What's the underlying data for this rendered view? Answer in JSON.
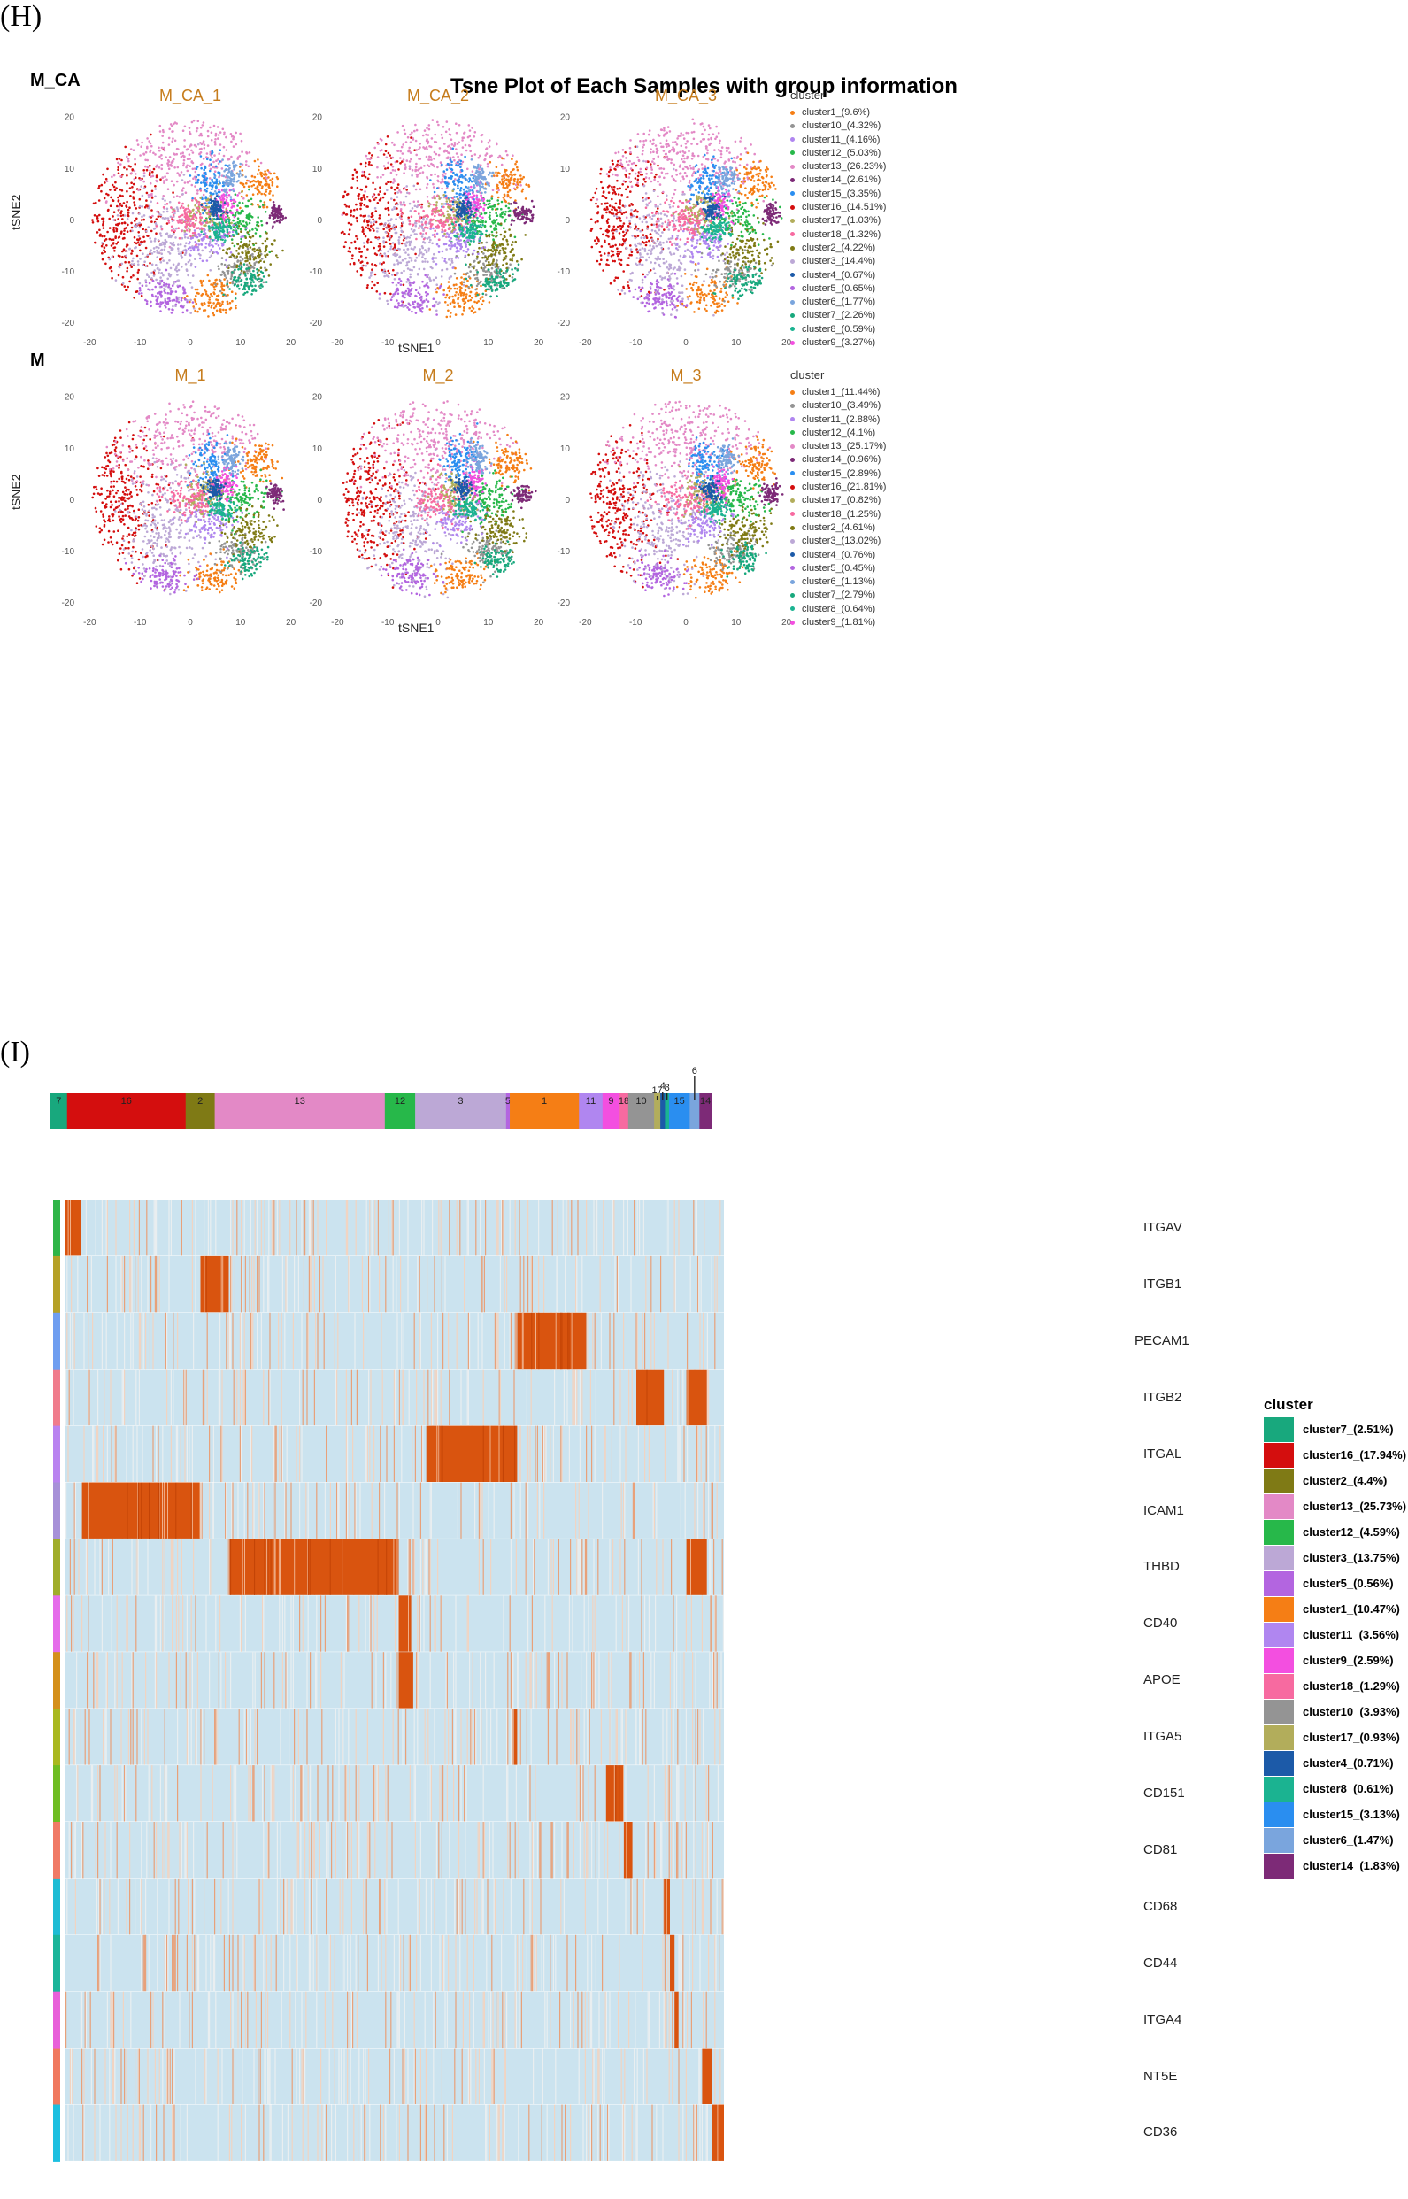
{
  "panel_h_label": "(H)",
  "panel_i_label": "(I)",
  "colors": {
    "cluster1": "#f57e15",
    "cluster2": "#7f7a15",
    "cluster3": "#bca8d6",
    "cluster4": "#1c5aa8",
    "cluster5": "#b365e0",
    "cluster6": "#7aa5dd",
    "cluster7": "#18a87d",
    "cluster8": "#1bb391",
    "cluster9": "#f34fe0",
    "cluster10": "#949494",
    "cluster11": "#b086f0",
    "cluster12": "#27b84a",
    "cluster13": "#e389c6",
    "cluster14": "#7d2a77",
    "cluster15": "#2a8ef0",
    "cluster16": "#d40e0e",
    "cluster17": "#b2ad5b",
    "cluster18": "#f76aa0"
  },
  "chart_data": [
    {
      "type": "scatter",
      "title": "Tsne Plot of Each Samples with group information",
      "xlabel": "tSNE1",
      "ylabel": "tSNE2",
      "xlim": [
        -22,
        22
      ],
      "ylim": [
        -21,
        22
      ],
      "xticks": [
        -20,
        -10,
        0,
        10,
        20
      ],
      "yticks": [
        20,
        10,
        0,
        -10,
        -20
      ],
      "groups": [
        {
          "name": "M_CA",
          "facets": [
            "M_CA_1",
            "M_CA_2",
            "M_CA_3"
          ],
          "legend_title": "cluster",
          "legend": [
            "cluster1_(9.6%)",
            "cluster10_(4.32%)",
            "cluster11_(4.16%)",
            "cluster12_(5.03%)",
            "cluster13_(26.23%)",
            "cluster14_(2.61%)",
            "cluster15_(3.35%)",
            "cluster16_(14.51%)",
            "cluster17_(1.03%)",
            "cluster18_(1.32%)",
            "cluster2_(4.22%)",
            "cluster3_(14.4%)",
            "cluster4_(0.67%)",
            "cluster5_(0.65%)",
            "cluster6_(1.77%)",
            "cluster7_(2.26%)",
            "cluster8_(0.59%)",
            "cluster9_(3.27%)"
          ],
          "legend_keys": [
            "cluster1",
            "cluster10",
            "cluster11",
            "cluster12",
            "cluster13",
            "cluster14",
            "cluster15",
            "cluster16",
            "cluster17",
            "cluster18",
            "cluster2",
            "cluster3",
            "cluster4",
            "cluster5",
            "cluster6",
            "cluster7",
            "cluster8",
            "cluster9"
          ]
        },
        {
          "name": "M",
          "facets": [
            "M_1",
            "M_2",
            "M_3"
          ],
          "legend_title": "cluster",
          "legend": [
            "cluster1_(11.44%)",
            "cluster10_(3.49%)",
            "cluster11_(2.88%)",
            "cluster12_(4.1%)",
            "cluster13_(25.17%)",
            "cluster14_(0.96%)",
            "cluster15_(2.89%)",
            "cluster16_(21.81%)",
            "cluster17_(0.82%)",
            "cluster18_(1.25%)",
            "cluster2_(4.61%)",
            "cluster3_(13.02%)",
            "cluster4_(0.76%)",
            "cluster5_(0.45%)",
            "cluster6_(1.13%)",
            "cluster7_(2.79%)",
            "cluster8_(0.64%)",
            "cluster9_(1.81%)"
          ],
          "legend_keys": [
            "cluster1",
            "cluster10",
            "cluster11",
            "cluster12",
            "cluster13",
            "cluster14",
            "cluster15",
            "cluster16",
            "cluster17",
            "cluster18",
            "cluster2",
            "cluster3",
            "cluster4",
            "cluster5",
            "cluster6",
            "cluster7",
            "cluster8",
            "cluster9"
          ]
        }
      ],
      "cluster_regions": [
        {
          "cluster": "cluster16",
          "cx": -14,
          "cy": -1,
          "sx": 4.5,
          "sy": 7.5
        },
        {
          "cluster": "cluster13",
          "cx": 0,
          "cy": 12,
          "sx": 8,
          "sy": 4.5
        },
        {
          "cluster": "cluster3",
          "cx": -5,
          "cy": -6,
          "sx": 4,
          "sy": 6
        },
        {
          "cluster": "cluster1",
          "cx": 5,
          "cy": -15,
          "sx": 2.5,
          "sy": 2
        },
        {
          "cluster": "cluster1",
          "cx": 14,
          "cy": 7,
          "sx": 2,
          "sy": 2
        },
        {
          "cluster": "cluster15",
          "cx": 4,
          "cy": 7,
          "sx": 1.8,
          "sy": 2.5
        },
        {
          "cluster": "cluster12",
          "cx": 10,
          "cy": 0,
          "sx": 2.8,
          "sy": 2.2
        },
        {
          "cluster": "cluster10",
          "cx": 10,
          "cy": -10,
          "sx": 2.5,
          "sy": 1.8
        },
        {
          "cluster": "cluster2",
          "cx": 12,
          "cy": -6,
          "sx": 2.5,
          "sy": 2
        },
        {
          "cluster": "cluster5",
          "cx": -5,
          "cy": -15,
          "sx": 2.5,
          "sy": 1.8
        },
        {
          "cluster": "cluster11",
          "cx": 4,
          "cy": -4,
          "sx": 2.5,
          "sy": 2
        },
        {
          "cluster": "cluster9",
          "cx": 7,
          "cy": 3,
          "sx": 1,
          "sy": 1.5
        },
        {
          "cluster": "cluster14",
          "cx": 17,
          "cy": 1,
          "sx": 1,
          "sy": 1
        },
        {
          "cluster": "cluster7",
          "cx": 12,
          "cy": -12,
          "sx": 2,
          "sy": 1.5
        },
        {
          "cluster": "cluster17",
          "cx": 3,
          "cy": 1,
          "sx": 2,
          "sy": 2
        },
        {
          "cluster": "cluster18",
          "cx": 0,
          "cy": 0,
          "sx": 3,
          "sy": 2
        },
        {
          "cluster": "cluster6",
          "cx": 8,
          "cy": 8,
          "sx": 1,
          "sy": 1.5
        },
        {
          "cluster": "cluster8",
          "cx": 6,
          "cy": -2,
          "sx": 1.5,
          "sy": 1
        },
        {
          "cluster": "cluster4",
          "cx": 5,
          "cy": 2,
          "sx": 1,
          "sy": 1
        }
      ]
    },
    {
      "type": "heatmap",
      "genes": [
        "ITGAV",
        "ITGB1",
        "PECAM1",
        "ITGB2",
        "ITGAL",
        "ICAM1",
        "THBD",
        "CD40",
        "APOE",
        "ITGA5",
        "CD151",
        "CD81",
        "CD68",
        "CD44",
        "ITGA4",
        "NT5E",
        "CD36"
      ],
      "gene_colors": [
        "#2fb548",
        "#b5a127",
        "#6f9ef0",
        "#f07c8c",
        "#b983f0",
        "#a791d8",
        "#a0ad2a",
        "#e56cea",
        "#d4901b",
        "#a9b81f",
        "#6fbd22",
        "#f07a66",
        "#1ebcd4",
        "#1bb59a",
        "#e860d9",
        "#f0795f",
        "#1cbfe0"
      ],
      "top_bar": [
        {
          "label": "7",
          "cluster": "cluster7",
          "width": 2.51
        },
        {
          "label": "16",
          "cluster": "cluster16",
          "width": 17.94
        },
        {
          "label": "2",
          "cluster": "cluster2",
          "width": 4.4
        },
        {
          "label": "13",
          "cluster": "cluster13",
          "width": 25.73
        },
        {
          "label": "12",
          "cluster": "cluster12",
          "width": 4.59
        },
        {
          "label": "3",
          "cluster": "cluster3",
          "width": 13.75
        },
        {
          "label": "5",
          "cluster": "cluster5",
          "width": 0.56
        },
        {
          "label": "1",
          "cluster": "cluster1",
          "width": 10.47
        },
        {
          "label": "11",
          "cluster": "cluster11",
          "width": 3.56
        },
        {
          "label": "9",
          "cluster": "cluster9",
          "width": 2.59
        },
        {
          "label": "18",
          "cluster": "cluster18",
          "width": 1.29
        },
        {
          "label": "10",
          "cluster": "cluster10",
          "width": 3.93
        },
        {
          "label": "17",
          "cluster": "cluster17",
          "width": 0.93
        },
        {
          "label": "4",
          "cluster": "cluster4",
          "width": 0.71
        },
        {
          "label": "8",
          "cluster": "cluster8",
          "width": 0.61
        },
        {
          "label": "15",
          "cluster": "cluster15",
          "width": 3.13
        },
        {
          "label": "6",
          "cluster": "cluster6",
          "width": 1.47
        },
        {
          "label": "14",
          "cluster": "cluster14",
          "width": 1.83
        }
      ],
      "high_blocks": [
        {
          "gene": "ITGAV",
          "from": 0,
          "to": 2.3
        },
        {
          "gene": "ITGB1",
          "from": 20.5,
          "to": 24.8
        },
        {
          "gene": "PECAM1",
          "from": 68.6,
          "to": 79.1
        },
        {
          "gene": "ITGB2",
          "from": 86.7,
          "to": 90.9
        },
        {
          "gene": "ITGB2",
          "from": 94.3,
          "to": 97.4
        },
        {
          "gene": "ITGAL",
          "from": 54.8,
          "to": 68.6
        },
        {
          "gene": "ICAM1",
          "from": 2.5,
          "to": 20.5
        },
        {
          "gene": "THBD",
          "from": 24.9,
          "to": 50.6
        },
        {
          "gene": "THBD",
          "from": 94.3,
          "to": 97.4
        },
        {
          "gene": "CD40",
          "from": 50.6,
          "to": 52.5
        },
        {
          "gene": "APOE",
          "from": 50.6,
          "to": 52.8
        },
        {
          "gene": "ITGA5",
          "from": 68.1,
          "to": 68.6
        },
        {
          "gene": "CD151",
          "from": 82.1,
          "to": 84.8
        },
        {
          "gene": "CD81",
          "from": 84.8,
          "to": 86.1
        },
        {
          "gene": "CD68",
          "from": 90.9,
          "to": 91.8
        },
        {
          "gene": "CD44",
          "from": 91.8,
          "to": 92.5
        },
        {
          "gene": "ITGA4",
          "from": 92.5,
          "to": 93.1
        },
        {
          "gene": "NT5E",
          "from": 96.7,
          "to": 98.2
        },
        {
          "gene": "CD36",
          "from": 98.2,
          "to": 100
        }
      ],
      "legend_title": "cluster",
      "legend": [
        "cluster7_(2.51%)",
        "cluster16_(17.94%)",
        "cluster2_(4.4%)",
        "cluster13_(25.73%)",
        "cluster12_(4.59%)",
        "cluster3_(13.75%)",
        "cluster5_(0.56%)",
        "cluster1_(10.47%)",
        "cluster11_(3.56%)",
        "cluster9_(2.59%)",
        "cluster18_(1.29%)",
        "cluster10_(3.93%)",
        "cluster17_(0.93%)",
        "cluster4_(0.71%)",
        "cluster8_(0.61%)",
        "cluster15_(3.13%)",
        "cluster6_(1.47%)",
        "cluster14_(1.83%)"
      ],
      "legend_keys": [
        "cluster7",
        "cluster16",
        "cluster2",
        "cluster13",
        "cluster12",
        "cluster3",
        "cluster5",
        "cluster1",
        "cluster11",
        "cluster9",
        "cluster18",
        "cluster10",
        "cluster17",
        "cluster4",
        "cluster8",
        "cluster15",
        "cluster6",
        "cluster14"
      ]
    }
  ]
}
